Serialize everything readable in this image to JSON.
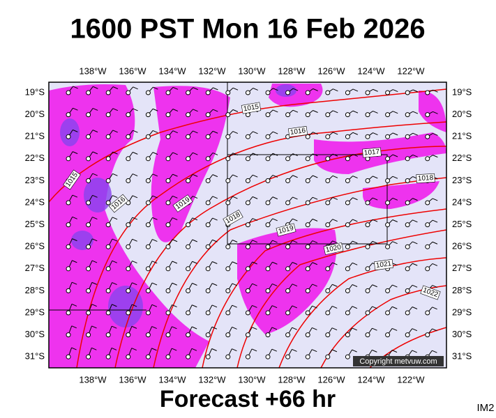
{
  "header": {
    "title": "1600 PST Mon 16 Feb 2026"
  },
  "map": {
    "lon_labels": [
      "138°W",
      "136°W",
      "134°W",
      "132°W",
      "130°W",
      "128°W",
      "126°W",
      "124°W",
      "122°W"
    ],
    "lat_labels": [
      "19°S",
      "20°S",
      "21°S",
      "22°S",
      "23°S",
      "24°S",
      "25°S",
      "26°S",
      "27°S",
      "28°S",
      "29°S",
      "30°S",
      "31°S"
    ],
    "isobar_labels": [
      "1015",
      "1016",
      "1017",
      "1018",
      "1015",
      "1016",
      "1019",
      "1018",
      "1019",
      "1020",
      "1021",
      "1022"
    ],
    "copyright": "Copyright metvuw.com"
  },
  "footer": {
    "forecast": "Forecast +66 hr",
    "image_id": "IM2"
  }
}
